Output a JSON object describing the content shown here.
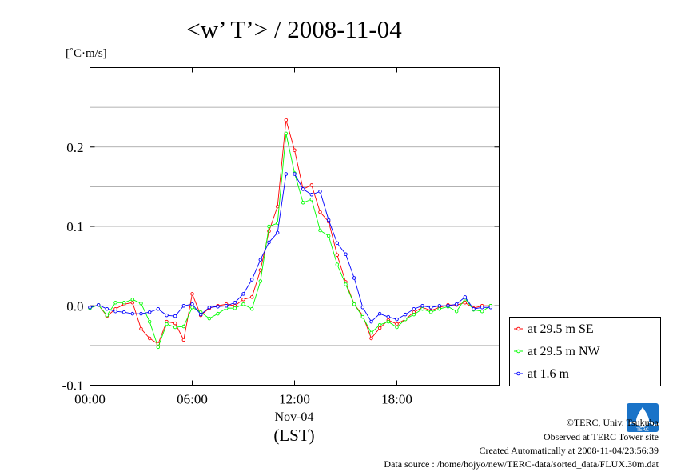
{
  "chart_data": {
    "type": "line",
    "title": "<w’ T’> / 2008-11-04",
    "ylabel": "[˚C·m/s]",
    "xlabel": "(LST)",
    "x_date_label": "Nov-04",
    "xlim": [
      0,
      24
    ],
    "ylim": [
      -0.1,
      0.3
    ],
    "x_ticks": [
      {
        "value": 0,
        "label": "00:00"
      },
      {
        "value": 6,
        "label": "06:00"
      },
      {
        "value": 12,
        "label": "12:00"
      },
      {
        "value": 18,
        "label": "18:00"
      }
    ],
    "y_ticks": [
      {
        "value": -0.1,
        "label": "-0.1"
      },
      {
        "value": 0.0,
        "label": "0.0"
      },
      {
        "value": 0.1,
        "label": "0.1"
      },
      {
        "value": 0.2,
        "label": "0.2"
      }
    ],
    "y_grid": [
      -0.05,
      0,
      0.05,
      0.1,
      0.15,
      0.2,
      0.25
    ],
    "grid": true,
    "legend_position": "right-outside-bottom",
    "x": [
      0,
      0.5,
      1,
      1.5,
      2,
      2.5,
      3,
      3.5,
      4,
      4.5,
      5,
      5.5,
      6,
      6.5,
      7,
      7.5,
      8,
      8.5,
      9,
      9.5,
      10,
      10.5,
      11,
      11.5,
      12,
      12.5,
      13,
      13.5,
      14,
      14.5,
      15,
      15.5,
      16,
      16.5,
      17,
      17.5,
      18,
      18.5,
      19,
      19.5,
      20,
      20.5,
      21,
      21.5,
      22,
      22.5,
      23,
      23.5
    ],
    "series": [
      {
        "name": "at 29.5 m SE",
        "color": "#ff0000",
        "values": [
          -0.002,
          0.001,
          -0.013,
          -0.004,
          0.002,
          0.004,
          -0.029,
          -0.041,
          -0.048,
          -0.02,
          -0.022,
          -0.043,
          0.015,
          -0.012,
          -0.003,
          0.0,
          0.002,
          0.0,
          0.008,
          0.011,
          0.045,
          0.094,
          0.125,
          0.234,
          0.196,
          0.147,
          0.152,
          0.118,
          0.106,
          0.064,
          0.03,
          0.002,
          -0.012,
          -0.041,
          -0.028,
          -0.018,
          -0.023,
          -0.017,
          -0.008,
          -0.002,
          -0.006,
          -0.002,
          0.001,
          0.001,
          0.004,
          -0.003,
          0.0,
          0.0
        ]
      },
      {
        "name": "at 29.5 m NW",
        "color": "#00ff00",
        "values": [
          -0.003,
          0.001,
          -0.012,
          0.004,
          0.004,
          0.008,
          0.003,
          -0.02,
          -0.052,
          -0.023,
          -0.027,
          -0.026,
          -0.002,
          -0.008,
          -0.016,
          -0.01,
          -0.003,
          -0.003,
          0.002,
          -0.004,
          0.031,
          0.1,
          0.104,
          0.217,
          0.167,
          0.13,
          0.134,
          0.095,
          0.088,
          0.052,
          0.027,
          0.002,
          -0.014,
          -0.034,
          -0.024,
          -0.02,
          -0.027,
          -0.017,
          -0.011,
          -0.004,
          -0.008,
          -0.004,
          -0.001,
          -0.007,
          0.009,
          -0.005,
          -0.007,
          0.0
        ]
      },
      {
        "name": "at 1.6 m",
        "color": "#0000ff",
        "values": [
          -0.002,
          0.001,
          -0.004,
          -0.007,
          -0.008,
          -0.01,
          -0.01,
          -0.008,
          -0.004,
          -0.012,
          -0.013,
          0.0,
          0.002,
          -0.011,
          -0.002,
          -0.001,
          0.0,
          0.004,
          0.015,
          0.033,
          0.058,
          0.08,
          0.092,
          0.166,
          0.166,
          0.147,
          0.14,
          0.144,
          0.108,
          0.079,
          0.065,
          0.035,
          -0.002,
          -0.02,
          -0.01,
          -0.014,
          -0.017,
          -0.011,
          -0.004,
          0.0,
          -0.002,
          0.0,
          0.0,
          0.002,
          0.011,
          -0.004,
          -0.002,
          -0.002
        ]
      }
    ]
  },
  "footer": {
    "copyright": "©TERC, Univ. Tsukuba",
    "observed": "Observed at TERC Tower site",
    "created": "Created Automatically at 2008-11-04/23:56:39",
    "source": "Data source : /home/hojyo/new/TERC-data/sorted_data/FLUX.30m.dat",
    "logo_text": "TERC",
    "logo_color": "#1a73c8"
  }
}
